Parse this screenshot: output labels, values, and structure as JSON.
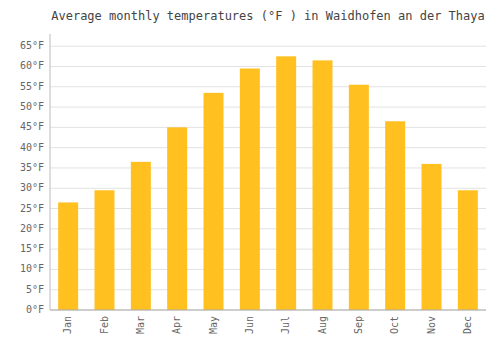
{
  "chart_data": {
    "type": "bar",
    "title": "Average monthly temperatures (°F ) in Waidhofen an der Thaya",
    "categories": [
      "Jan",
      "Feb",
      "Mar",
      "Apr",
      "May",
      "Jun",
      "Jul",
      "Aug",
      "Sep",
      "Oct",
      "Nov",
      "Dec"
    ],
    "values": [
      26.5,
      29.5,
      36.5,
      45.0,
      53.5,
      59.5,
      62.5,
      61.5,
      55.5,
      46.5,
      36.0,
      29.5
    ],
    "color": "#FFC020",
    "ylim": [
      0,
      68
    ],
    "yticks": [
      {
        "value": 0,
        "label": "0°F"
      },
      {
        "value": 5,
        "label": "5°F"
      },
      {
        "value": 10,
        "label": "10°F"
      },
      {
        "value": 15,
        "label": "15°F"
      },
      {
        "value": 20,
        "label": "20°F"
      },
      {
        "value": 25,
        "label": "25°F"
      },
      {
        "value": 30,
        "label": "30°F"
      },
      {
        "value": 35,
        "label": "35°F"
      },
      {
        "value": 40,
        "label": "40°F"
      },
      {
        "value": 45,
        "label": "45°F"
      },
      {
        "value": 50,
        "label": "50°F"
      },
      {
        "value": 55,
        "label": "55°F"
      },
      {
        "value": 60,
        "label": "60°F"
      },
      {
        "value": 65,
        "label": "65°F"
      }
    ],
    "grid": true
  }
}
